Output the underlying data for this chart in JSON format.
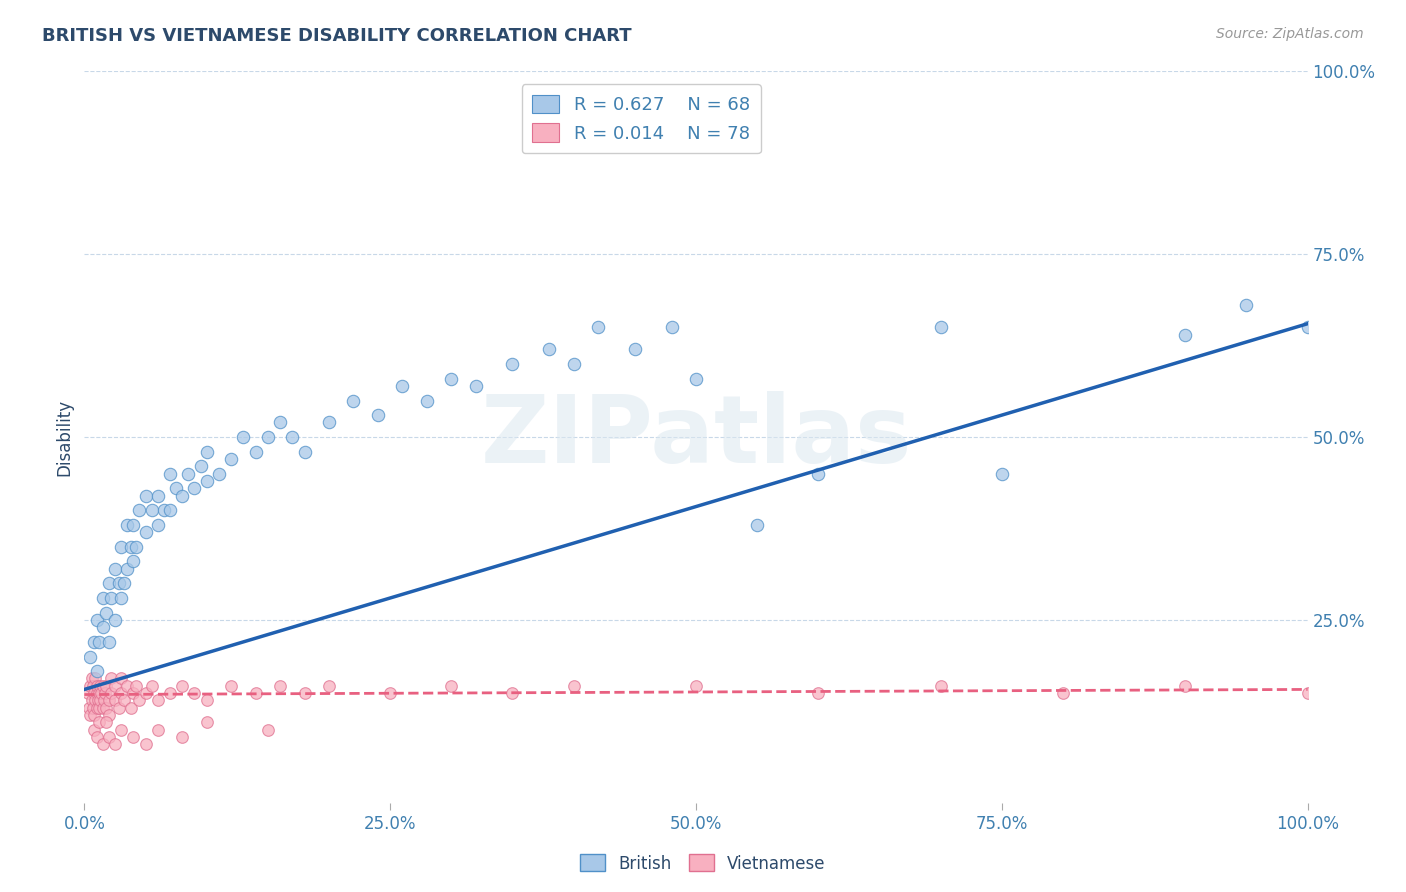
{
  "title": "BRITISH VS VIETNAMESE DISABILITY CORRELATION CHART",
  "source": "Source: ZipAtlas.com",
  "ylabel": "Disability",
  "title_color": "#2d4a6b",
  "background_color": "#ffffff",
  "watermark_text": "ZIPatlas",
  "legend_british_R": "R = 0.627",
  "legend_british_N": "N = 68",
  "legend_vietnamese_R": "R = 0.014",
  "legend_vietnamese_N": "N = 78",
  "british_fill": "#a8c8e8",
  "british_edge": "#5090c8",
  "vietnamese_fill": "#f8b0c0",
  "vietnamese_edge": "#e07090",
  "british_line_color": "#2060b0",
  "vietnamese_line_color": "#e86080",
  "grid_color": "#c8d8e8",
  "tick_color": "#4080b0",
  "british_scatter_x": [
    0.005,
    0.008,
    0.01,
    0.01,
    0.012,
    0.015,
    0.015,
    0.018,
    0.02,
    0.02,
    0.022,
    0.025,
    0.025,
    0.028,
    0.03,
    0.03,
    0.032,
    0.035,
    0.035,
    0.038,
    0.04,
    0.04,
    0.042,
    0.045,
    0.05,
    0.05,
    0.055,
    0.06,
    0.06,
    0.065,
    0.07,
    0.07,
    0.075,
    0.08,
    0.085,
    0.09,
    0.095,
    0.1,
    0.1,
    0.11,
    0.12,
    0.13,
    0.14,
    0.15,
    0.16,
    0.17,
    0.18,
    0.2,
    0.22,
    0.24,
    0.26,
    0.28,
    0.3,
    0.32,
    0.35,
    0.38,
    0.4,
    0.42,
    0.45,
    0.48,
    0.5,
    0.55,
    0.6,
    0.7,
    0.75,
    0.9,
    0.95,
    1.0
  ],
  "british_scatter_y": [
    0.2,
    0.22,
    0.18,
    0.25,
    0.22,
    0.24,
    0.28,
    0.26,
    0.22,
    0.3,
    0.28,
    0.25,
    0.32,
    0.3,
    0.28,
    0.35,
    0.3,
    0.32,
    0.38,
    0.35,
    0.33,
    0.38,
    0.35,
    0.4,
    0.37,
    0.42,
    0.4,
    0.38,
    0.42,
    0.4,
    0.45,
    0.4,
    0.43,
    0.42,
    0.45,
    0.43,
    0.46,
    0.44,
    0.48,
    0.45,
    0.47,
    0.5,
    0.48,
    0.5,
    0.52,
    0.5,
    0.48,
    0.52,
    0.55,
    0.53,
    0.57,
    0.55,
    0.58,
    0.57,
    0.6,
    0.62,
    0.6,
    0.65,
    0.62,
    0.65,
    0.58,
    0.38,
    0.45,
    0.65,
    0.45,
    0.64,
    0.68,
    0.65
  ],
  "vietnamese_scatter_x": [
    0.003,
    0.004,
    0.005,
    0.005,
    0.006,
    0.006,
    0.007,
    0.007,
    0.008,
    0.008,
    0.009,
    0.009,
    0.01,
    0.01,
    0.01,
    0.011,
    0.012,
    0.012,
    0.013,
    0.013,
    0.014,
    0.015,
    0.015,
    0.016,
    0.017,
    0.018,
    0.018,
    0.02,
    0.02,
    0.022,
    0.022,
    0.025,
    0.025,
    0.028,
    0.03,
    0.03,
    0.032,
    0.035,
    0.038,
    0.04,
    0.042,
    0.045,
    0.05,
    0.055,
    0.06,
    0.07,
    0.08,
    0.09,
    0.1,
    0.12,
    0.14,
    0.16,
    0.18,
    0.2,
    0.25,
    0.3,
    0.35,
    0.4,
    0.5,
    0.6,
    0.7,
    0.8,
    0.9,
    1.0,
    0.008,
    0.01,
    0.012,
    0.015,
    0.018,
    0.02,
    0.025,
    0.03,
    0.04,
    0.05,
    0.06,
    0.08,
    0.1,
    0.15
  ],
  "vietnamese_scatter_y": [
    0.15,
    0.13,
    0.16,
    0.12,
    0.14,
    0.17,
    0.13,
    0.16,
    0.15,
    0.12,
    0.14,
    0.17,
    0.15,
    0.13,
    0.16,
    0.14,
    0.15,
    0.13,
    0.16,
    0.14,
    0.15,
    0.13,
    0.16,
    0.14,
    0.15,
    0.13,
    0.16,
    0.14,
    0.12,
    0.15,
    0.17,
    0.14,
    0.16,
    0.13,
    0.15,
    0.17,
    0.14,
    0.16,
    0.13,
    0.15,
    0.16,
    0.14,
    0.15,
    0.16,
    0.14,
    0.15,
    0.16,
    0.15,
    0.14,
    0.16,
    0.15,
    0.16,
    0.15,
    0.16,
    0.15,
    0.16,
    0.15,
    0.16,
    0.16,
    0.15,
    0.16,
    0.15,
    0.16,
    0.15,
    0.1,
    0.09,
    0.11,
    0.08,
    0.11,
    0.09,
    0.08,
    0.1,
    0.09,
    0.08,
    0.1,
    0.09,
    0.11,
    0.1
  ],
  "british_line_x": [
    0.0,
    1.0
  ],
  "british_line_y": [
    0.155,
    0.655
  ],
  "vietnamese_line_x": [
    0.0,
    1.0
  ],
  "vietnamese_line_y": [
    0.148,
    0.155
  ],
  "xlim": [
    0.0,
    1.0
  ],
  "ylim": [
    0.0,
    1.0
  ],
  "xticks": [
    0.0,
    0.25,
    0.5,
    0.75,
    1.0
  ],
  "xtick_labels": [
    "0.0%",
    "25.0%",
    "50.0%",
    "75.0%",
    "100.0%"
  ],
  "ytick_right_vals": [
    0.25,
    0.5,
    0.75,
    1.0
  ],
  "ytick_right_labels": [
    "25.0%",
    "50.0%",
    "75.0%",
    "100.0%"
  ]
}
